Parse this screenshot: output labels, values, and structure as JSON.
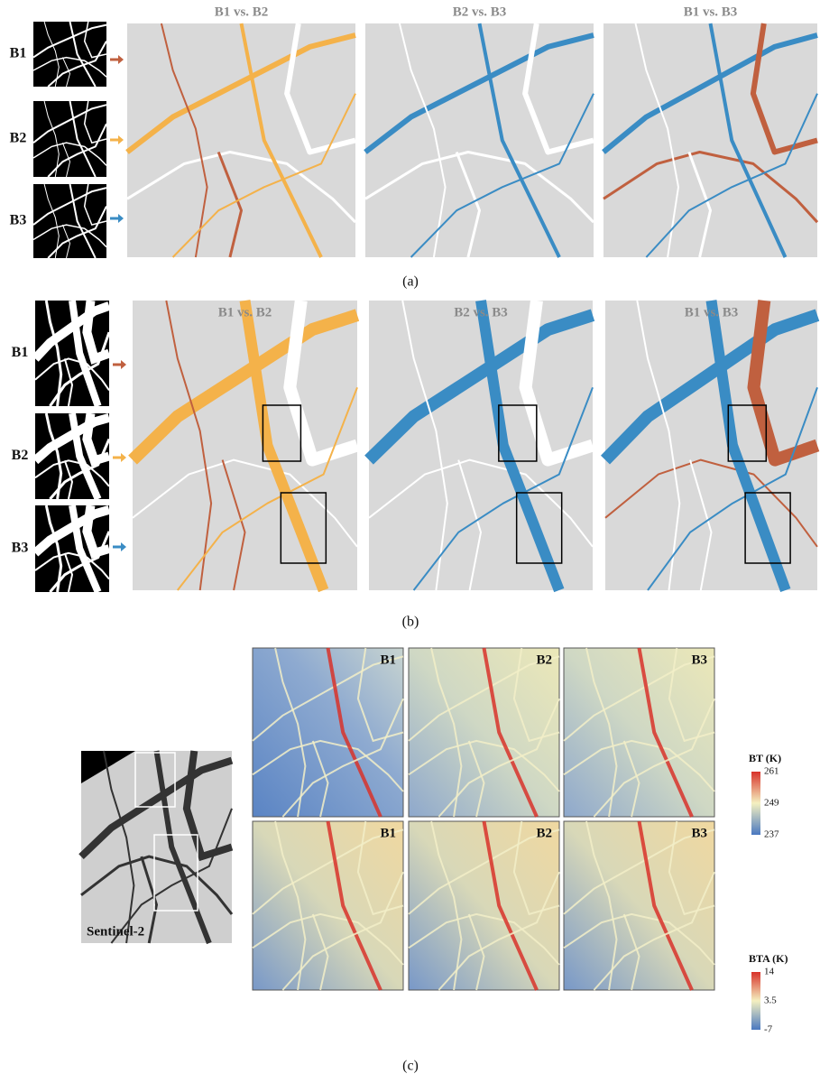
{
  "panel_a": {
    "rows": [
      "B1",
      "B2",
      "B3"
    ],
    "maps": [
      "B1 vs. B2",
      "B2 vs. B3",
      "B1 vs. B3"
    ],
    "caption": "(a)"
  },
  "panel_b": {
    "rows": [
      "B1",
      "B2",
      "B3"
    ],
    "maps": [
      "B1 vs. B2",
      "B2 vs. B3",
      "B1 vs. B3"
    ],
    "caption": "(b)"
  },
  "panel_c": {
    "image_label": "Sentinel-2",
    "maps": [
      "B1",
      "B2",
      "B3"
    ],
    "bt_colorbar": {
      "title": "BT (K)",
      "ticks": [
        261,
        249,
        237
      ]
    },
    "bta_colorbar": {
      "title": "BTA (K)",
      "ticks": [
        14,
        3.5,
        -7
      ]
    },
    "caption": "(c)"
  }
}
